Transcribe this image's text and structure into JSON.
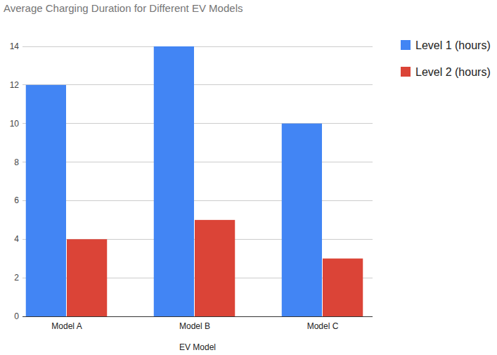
{
  "chart_data": {
    "type": "bar",
    "title": "Average Charging Duration for Different EV Models",
    "x_label": "EV Model",
    "categories": [
      "Model A",
      "Model B",
      "Model C"
    ],
    "series": [
      {
        "name": "Level 1 (hours)",
        "color": "#4285f4",
        "values": [
          12,
          14,
          10
        ]
      },
      {
        "name": "Level 2 (hours)",
        "color": "#db4437",
        "values": [
          4,
          5,
          3
        ]
      }
    ],
    "ylim": [
      0,
      14
    ],
    "yticks": [
      0,
      2,
      4,
      6,
      8,
      10,
      12,
      14
    ],
    "grid": true,
    "legend": "right"
  }
}
